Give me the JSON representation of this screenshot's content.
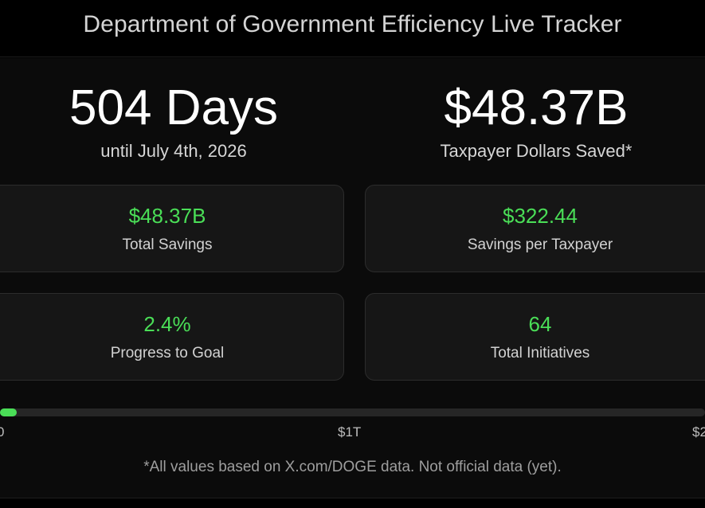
{
  "header": {
    "title": "Department of Government Efficiency Live Tracker"
  },
  "hero": {
    "days_value": "504 Days",
    "days_label": "until July 4th, 2026",
    "saved_value": "$48.37B",
    "saved_label": "Taxpayer Dollars Saved*"
  },
  "stats": [
    {
      "value": "$48.37B",
      "label": "Total Savings"
    },
    {
      "value": "$322.44",
      "label": "Savings per Taxpayer"
    },
    {
      "value": "2.4%",
      "label": "Progress to Goal"
    },
    {
      "value": "64",
      "label": "Total Initiatives"
    }
  ],
  "progress": {
    "fraction": 0.024,
    "ticks": [
      "0",
      "$1T",
      "$2"
    ]
  },
  "footnote": "*All values based on X.com/DOGE data. Not official data (yet).",
  "colors": {
    "accent": "#4ade57",
    "background": "#000000",
    "panel": "#0b0b0b",
    "card": "#161616"
  }
}
